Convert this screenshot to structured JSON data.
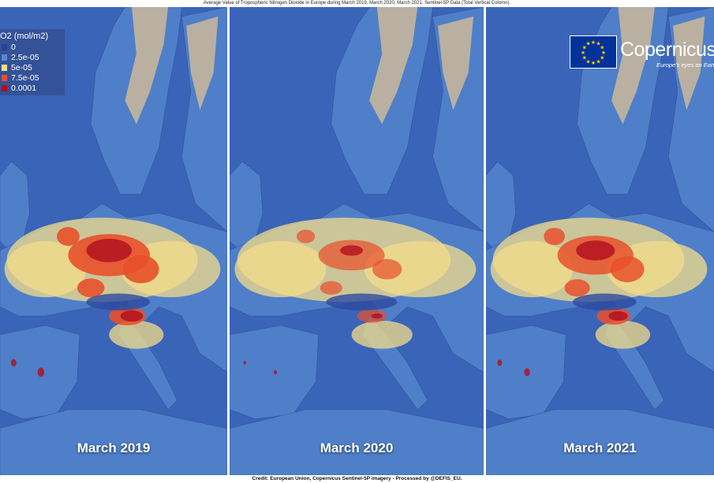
{
  "title": "Average Value of Tropospheric Nitrogen Dioxide in Europe during March 2019, March 2020, March 2021. Sentinel-5P Data (Total Vertical Colomn).",
  "credit": "Credit: European Union, Copernicus Sentinel-5P imagery - Processed by @DEFIS_EU.",
  "legend": {
    "title": "O2 (mol/m2)",
    "items": [
      {
        "label": "0",
        "color": "#2b3f9e"
      },
      {
        "label": "2.5e-05",
        "color": "#5a86d0"
      },
      {
        "label": "5e-05",
        "color": "#f4dc8a"
      },
      {
        "label": "7.5e-05",
        "color": "#e8502a"
      },
      {
        "label": "0.0001",
        "color": "#b00f1e"
      }
    ]
  },
  "panels": [
    {
      "label": "March 2019",
      "intensity": 1.0
    },
    {
      "label": "March 2020",
      "intensity": 0.45
    },
    {
      "label": "March 2021",
      "intensity": 0.85
    }
  ],
  "logo": {
    "name": "Copernicus",
    "tagline": "Europe's eyes on Earth"
  },
  "colors": {
    "sea": "#3a64b8",
    "land": "#4f7fc9",
    "snow": "#cbb99a",
    "yellow": "#f4dc8a",
    "orange": "#e8502a",
    "red": "#b00f1e"
  }
}
